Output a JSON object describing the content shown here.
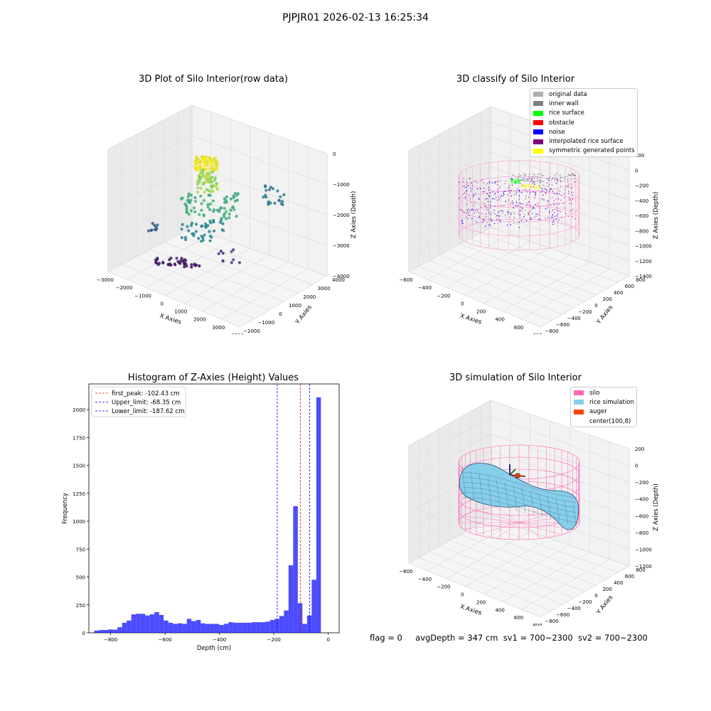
{
  "figure": {
    "suptitle": "PJPJR01 2026-02-13 16:25:34",
    "footer": {
      "flag": "flag = 0",
      "avg_depth": "avgDepth = 347 cm",
      "sv1": "sv1 = 700~2300",
      "sv2": "sv2 = 700~2300"
    }
  },
  "panels": {
    "raw": {
      "title": "3D Plot of Silo Interior(row data)",
      "xlabel": "X Axies",
      "ylabel": "Y Axies",
      "zlabel": "Z Axies (Depth)",
      "xticks": [
        "−3000",
        "−2000",
        "−1000",
        "0",
        "1000",
        "2000",
        "3000",
        "4000"
      ],
      "yticks": [
        "−2000",
        "−1000",
        "0",
        "1000",
        "2000",
        "3000",
        "4000"
      ],
      "zticks": [
        "0",
        "−1000",
        "−2000",
        "−3000",
        "−4000"
      ]
    },
    "classify": {
      "title": "3D classify of Silo Interior",
      "xlabel": "X Axies",
      "ylabel": "Y Axies",
      "zlabel": "Z Axies (Depth)",
      "xticks": [
        "−600",
        "−400",
        "−200",
        "0",
        "200",
        "400",
        "600",
        "800"
      ],
      "yticks": [
        "−800",
        "−600",
        "−400",
        "−200",
        "0",
        "200",
        "400",
        "600",
        "800"
      ],
      "zticks": [
        "200",
        "0",
        "−200",
        "−400",
        "−600",
        "−800",
        "−1000",
        "−1200",
        "−1400"
      ],
      "legend": [
        {
          "label": "original data",
          "color": "#b0b0b0"
        },
        {
          "label": "inner wall",
          "color": "#808080"
        },
        {
          "label": "rice surface",
          "color": "#00ff00"
        },
        {
          "label": "obstacle",
          "color": "#ff0000"
        },
        {
          "label": "noise",
          "color": "#0000ff"
        },
        {
          "label": "interpolated rice surface",
          "color": "#800080"
        },
        {
          "label": "symmetric generated points",
          "color": "#ffff00"
        }
      ]
    },
    "histogram": {
      "title": "Histogram of Z-Axies (Height) Values",
      "xlabel": "Depth (cm)",
      "ylabel": "Frequency"
    },
    "simulation": {
      "title": "3D simulation of Silo Interior",
      "xlabel": "X Axies",
      "ylabel": "Y Axies",
      "zlabel": "Z Axies (Depth)",
      "xticks": [
        "−600",
        "−400",
        "−200",
        "0",
        "200",
        "400",
        "600",
        "800"
      ],
      "yticks": [
        "−800",
        "−600",
        "−400",
        "−200",
        "0",
        "200",
        "400",
        "600",
        "800"
      ],
      "zticks": [
        "200",
        "0",
        "−200",
        "−400",
        "−600",
        "−800",
        "−1000",
        "−1200"
      ],
      "legend": [
        {
          "label": "silo",
          "color": "#ff69b4"
        },
        {
          "label": "rice simulation",
          "color": "#87ceeb"
        },
        {
          "label": "auger",
          "color": "#ff4500"
        },
        {
          "label": "center(100,8)",
          "color": "#ffffff"
        }
      ]
    }
  },
  "chart_data": [
    {
      "type": "scatter",
      "title": "3D Plot of Silo Interior(row data)",
      "xlabel": "X Axies",
      "ylabel": "Y Axies",
      "zlabel": "Z Axies (Depth)",
      "xlim": [
        -3000,
        4000
      ],
      "ylim": [
        -2500,
        4000
      ],
      "zlim": [
        -4500,
        0
      ],
      "colormap": "viridis"
    },
    {
      "type": "scatter",
      "title": "3D classify of Silo Interior",
      "xlim": [
        -700,
        900
      ],
      "ylim": [
        -800,
        800
      ],
      "zlim": [
        -1400,
        200
      ],
      "series": [
        {
          "name": "original data",
          "color": "#b0b0b0"
        },
        {
          "name": "inner wall",
          "color": "#808080"
        },
        {
          "name": "rice surface",
          "color": "#00ff00"
        },
        {
          "name": "obstacle",
          "color": "#ff0000"
        },
        {
          "name": "noise",
          "color": "#0000ff"
        },
        {
          "name": "interpolated rice surface",
          "color": "#800080"
        },
        {
          "name": "symmetric generated points",
          "color": "#ffff00"
        }
      ]
    },
    {
      "type": "bar",
      "title": "Histogram of Z-Axies (Height) Values",
      "xlabel": "Depth (cm)",
      "ylabel": "Frequency",
      "xlim": [
        -880,
        40
      ],
      "ylim": [
        0,
        2230
      ],
      "bar_color": "#0000ff",
      "bins_left_edge_start": -860,
      "bin_width": 17,
      "values": [
        20,
        25,
        25,
        30,
        28,
        50,
        90,
        110,
        165,
        170,
        170,
        155,
        165,
        185,
        160,
        110,
        90,
        80,
        85,
        80,
        125,
        105,
        115,
        85,
        80,
        80,
        80,
        70,
        80,
        95,
        90,
        90,
        90,
        90,
        95,
        95,
        95,
        100,
        115,
        125,
        150,
        200,
        605,
        1135,
        265,
        80,
        155,
        475,
        2110
      ],
      "yticks": [
        0,
        250,
        500,
        750,
        1000,
        1250,
        1500,
        1750,
        2000
      ],
      "xticks": [
        -800,
        -600,
        -400,
        -200,
        0
      ],
      "vlines": [
        {
          "label": "first_peak: -102.43 cm",
          "x": -102.43,
          "color": "#ff0000"
        },
        {
          "label": "Upper_limit: -68.35 cm",
          "x": -68.35,
          "color": "#0000ff"
        },
        {
          "label": "Lower_limit: -187.62 cm",
          "x": -187.62,
          "color": "#0000ff"
        }
      ],
      "legend_position": "upper-left"
    },
    {
      "type": "surface",
      "title": "3D simulation of Silo Interior",
      "xlim": [
        -700,
        900
      ],
      "ylim": [
        -800,
        800
      ],
      "zlim": [
        -1300,
        300
      ],
      "series": [
        {
          "name": "silo",
          "color": "#ff69b4"
        },
        {
          "name": "rice simulation",
          "color": "#87ceeb"
        },
        {
          "name": "auger",
          "color": "#ff4500"
        },
        {
          "name": "center(100,8)",
          "color": "#ffffff"
        }
      ]
    }
  ]
}
